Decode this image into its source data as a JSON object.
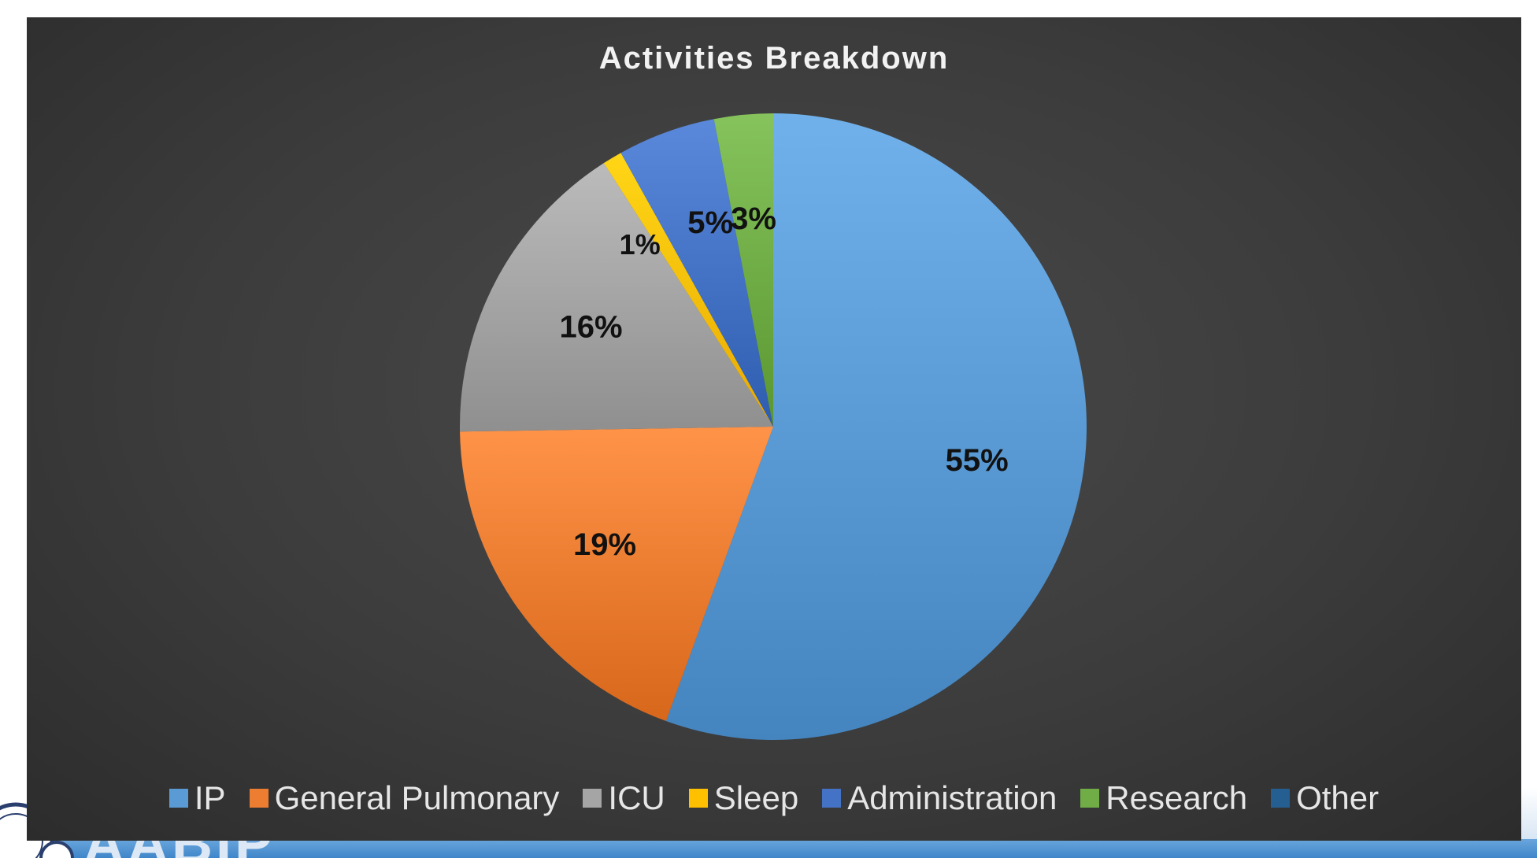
{
  "chart_data": {
    "type": "pie",
    "title": "Activities Breakdown",
    "categories": [
      "IP",
      "General Pulmonary",
      "ICU",
      "Sleep",
      "Administration",
      "Research",
      "Other"
    ],
    "values": [
      55,
      19,
      16,
      1,
      5,
      3,
      0
    ],
    "data_labels": [
      "55%",
      "19%",
      "16%",
      "1%",
      "5%",
      "3%",
      ""
    ],
    "colors": [
      "#5b9bd5",
      "#ed7d31",
      "#a5a5a5",
      "#ffc000",
      "#4472c4",
      "#70ad47",
      "#255e91"
    ],
    "legend_position": "bottom",
    "start_angle": "12 o'clock, clockwise"
  },
  "logo": {
    "text": "AABIP"
  }
}
